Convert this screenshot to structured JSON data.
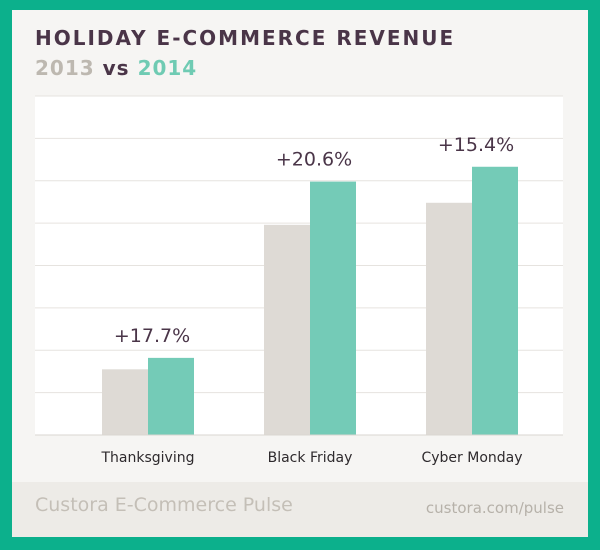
{
  "header": {
    "title": "HOLIDAY E-COMMERCE REVENUE",
    "year_a": "2013",
    "vs": "vs",
    "year_b": "2014"
  },
  "footer": {
    "brand": "Custora E-Commerce Pulse",
    "url": "custora.com/pulse"
  },
  "colors": {
    "series_2013": "#dedad5",
    "series_2014": "#74cbb7",
    "text_dark": "#4a3548",
    "grid": "#e6e3df"
  },
  "chart_data": {
    "type": "bar",
    "title": "HOLIDAY E-COMMERCE REVENUE",
    "subtitle": "2013 vs 2014",
    "categories": [
      "Thanksgiving",
      "Black Friday",
      "Cyber Monday"
    ],
    "series": [
      {
        "name": "2013",
        "values": [
          15.5,
          49.6,
          54.8
        ]
      },
      {
        "name": "2014",
        "values": [
          18.2,
          59.8,
          63.3
        ]
      }
    ],
    "annotations": [
      "+17.7%",
      "+20.6%",
      "+15.4%"
    ],
    "ylim": [
      0,
      80
    ],
    "grid": true,
    "y_ticks_shown": false,
    "legend": "subtitle"
  }
}
